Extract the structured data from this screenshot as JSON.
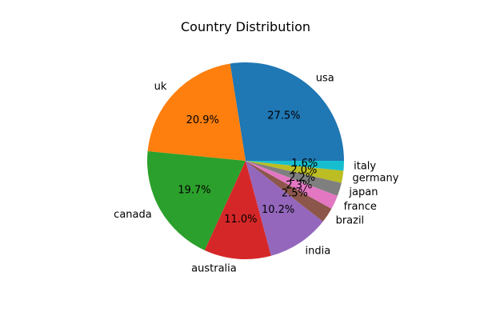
{
  "chart_data": {
    "type": "pie",
    "title": "Country Distribution",
    "categories": [
      "usa",
      "uk",
      "canada",
      "australia",
      "india",
      "brazil",
      "france",
      "japan",
      "germany",
      "italy"
    ],
    "values": [
      27.5,
      20.9,
      19.7,
      11.0,
      10.2,
      2.5,
      2.3,
      2.2,
      2.0,
      1.6
    ],
    "value_labels": [
      "27.5%",
      "20.9%",
      "19.7%",
      "11.0%",
      "10.2%",
      "2.5%",
      "2.3%",
      "2.2%",
      "2.0%",
      "1.6%"
    ],
    "colors": [
      "#1f77b4",
      "#ff7f0e",
      "#2ca02c",
      "#d62728",
      "#9467bd",
      "#8c564b",
      "#e377c2",
      "#7f7f7f",
      "#bcbd22",
      "#17becf"
    ],
    "start_angle_deg": 0,
    "direction": "counterclockwise"
  }
}
